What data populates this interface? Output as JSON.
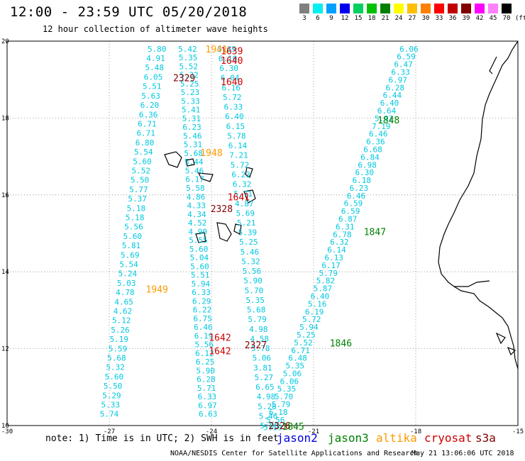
{
  "header": {
    "title": "12:00 - 23:59 UTC 05/20/2018",
    "subtitle": "12 hour collection of altimeter wave heights"
  },
  "color_scale": {
    "unit": "(ft)",
    "bins": [
      {
        "label": "3",
        "color": "#808080"
      },
      {
        "label": "6",
        "color": "#00f0f0"
      },
      {
        "label": "9",
        "color": "#00a0ff"
      },
      {
        "label": "12",
        "color": "#0000f0"
      },
      {
        "label": "15",
        "color": "#00d060"
      },
      {
        "label": "18",
        "color": "#00c000"
      },
      {
        "label": "21",
        "color": "#008000"
      },
      {
        "label": "24",
        "color": "#ffff00"
      },
      {
        "label": "27",
        "color": "#ffc000"
      },
      {
        "label": "30",
        "color": "#ff8000"
      },
      {
        "label": "33",
        "color": "#ff0000"
      },
      {
        "label": "36",
        "color": "#c00000"
      },
      {
        "label": "39",
        "color": "#800000"
      },
      {
        "label": "42",
        "color": "#ff00ff"
      },
      {
        "label": "45",
        "color": "#ff80ff"
      },
      {
        "label": "70",
        "color": "#000000"
      }
    ]
  },
  "axes": {
    "lon_ticks": [
      "-30",
      "-27",
      "-24",
      "-21",
      "-18",
      "-15"
    ],
    "lat_ticks": [
      "20",
      "18",
      "16",
      "14",
      "12",
      "10"
    ]
  },
  "passes": [
    {
      "time": "1639",
      "color": "#d00000",
      "lon": -23.4,
      "lat": 19.75
    },
    {
      "time": "1640",
      "color": "#d00000",
      "lon": -23.4,
      "lat": 19.5
    },
    {
      "time": "1640",
      "color": "#d00000",
      "lon": -23.4,
      "lat": 18.95
    },
    {
      "time": "1941",
      "color": "#ff9900",
      "lon": -23.85,
      "lat": 19.8
    },
    {
      "time": "2329",
      "color": "#800000",
      "lon": -24.8,
      "lat": 19.05
    },
    {
      "time": "1848",
      "color": "#008000",
      "lon": -18.8,
      "lat": 17.95
    },
    {
      "time": "1948",
      "color": "#ff9900",
      "lon": -24.0,
      "lat": 17.1
    },
    {
      "time": "1641",
      "color": "#d00000",
      "lon": -23.2,
      "lat": 15.95
    },
    {
      "time": "2328",
      "color": "#800000",
      "lon": -23.7,
      "lat": 15.65
    },
    {
      "time": "1847",
      "color": "#008000",
      "lon": -19.2,
      "lat": 15.05
    },
    {
      "time": "1949",
      "color": "#ff9900",
      "lon": -25.6,
      "lat": 13.55
    },
    {
      "time": "1642",
      "color": "#d00000",
      "lon": -23.75,
      "lat": 12.3
    },
    {
      "time": "2327",
      "color": "#800000",
      "lon": -22.7,
      "lat": 12.1
    },
    {
      "time": "1642",
      "color": "#d00000",
      "lon": -23.75,
      "lat": 11.95
    },
    {
      "time": "1846",
      "color": "#008000",
      "lon": -20.2,
      "lat": 12.15
    },
    {
      "time": "2326",
      "color": "#800000",
      "lon": -22.0,
      "lat": 10.0
    },
    {
      "time": "1845",
      "color": "#008000",
      "lon": -21.6,
      "lat": 9.98
    }
  ],
  "tracks": [
    {
      "name": "west-a",
      "lon0": -25.6,
      "lat0": 19.8,
      "lon1": -27.0,
      "lat1": 10.3,
      "values": [
        "5.80",
        "4.91",
        "5.48",
        "6.05",
        "5.51",
        "5.63",
        "6.20",
        "6.36",
        "6.71",
        "6.71",
        "6.80",
        "5.54",
        "5.60",
        "5.52",
        "5.50",
        "5.77",
        "5.37",
        "5.18",
        "5.18",
        "5.56",
        "5.60",
        "5.81",
        "5.69",
        "5.54",
        "5.24",
        "5.03",
        "4.78",
        "4.65",
        "4.62",
        "5.12",
        "5.26",
        "5.19",
        "5.59",
        "5.68",
        "5.32",
        "5.60",
        "5.50",
        "5.29",
        "5.33",
        "5.74"
      ]
    },
    {
      "name": "west-b",
      "lon0": -24.7,
      "lat0": 19.8,
      "lon1": -24.1,
      "lat1": 10.3,
      "values": [
        "5.42",
        "5.35",
        "5.52",
        "5.32",
        "5.25",
        "5.23",
        "5.33",
        "5.41",
        "5.31",
        "6.23",
        "5.46",
        "5.31",
        "5.68",
        "5.44",
        "5.46",
        "6.17",
        "5.58",
        "4.86",
        "4.33",
        "4.34",
        "4.52",
        "4.90",
        "5.55",
        "5.60",
        "5.04",
        "5.60",
        "5.51",
        "5.94",
        "6.33",
        "6.29",
        "6.22",
        "6.75",
        "6.46",
        "6.19",
        "5.56",
        "6.12",
        "6.25",
        "5.90",
        "6.28",
        "5.71",
        "6.33",
        "6.97",
        "6.63"
      ]
    },
    {
      "name": "mid",
      "lon0": -23.55,
      "lat0": 19.8,
      "lon1": -22.3,
      "lat1": 10.0,
      "values": [
        "5.39",
        "6.10",
        "6.30",
        "6.04",
        "6.16",
        "5.72",
        "6.33",
        "6.40",
        "6.15",
        "5.78",
        "6.14",
        "7.21",
        "5.72",
        "6.23",
        "6.32",
        "5.71",
        "4.87",
        "5.69",
        "5.21",
        "5.39",
        "5.25",
        "5.46",
        "5.32",
        "5.56",
        "5.90",
        "5.70",
        "5.35",
        "5.68",
        "5.79",
        "4.98",
        "4.58",
        "5.78",
        "5.06",
        "3.81",
        "5.27",
        "6.65",
        "4.98",
        "5.28",
        "5.46",
        "5.80"
      ]
    },
    {
      "name": "east",
      "lon0": -18.2,
      "lat0": 19.8,
      "lon1": -22.2,
      "lat1": 9.95,
      "values": [
        "6.06",
        "6.59",
        "6.47",
        "6.33",
        "6.97",
        "6.28",
        "6.44",
        "6.40",
        "6.64",
        "5.97",
        "7.19",
        "6.46",
        "6.36",
        "6.68",
        "6.84",
        "6.98",
        "6.30",
        "6.18",
        "6.23",
        "6.46",
        "6.59",
        "6.59",
        "6.87",
        "6.31",
        "6.78",
        "6.32",
        "6.14",
        "6.13",
        "6.17",
        "5.79",
        "5.82",
        "5.87",
        "6.40",
        "5.16",
        "6.19",
        "5.72",
        "5.94",
        "5.25",
        "5.52",
        "6.71",
        "6.48",
        "5.35",
        "5.06",
        "6.06",
        "5.35",
        "5.70",
        "5.79",
        "6.18",
        "5.56",
        "5.19"
      ]
    }
  ],
  "note": "note: 1) Time is in UTC; 2) SWH is in feet",
  "legend": [
    {
      "label": "jason2",
      "color": "#0000e0"
    },
    {
      "label": "jason3",
      "color": "#008000"
    },
    {
      "label": "altika",
      "color": "#ff9900"
    },
    {
      "label": "cryosat",
      "color": "#d00000"
    },
    {
      "label": "s3a",
      "color": "#800000"
    }
  ],
  "footer": "NOAA/NESDIS Center for Satellite Applications and Research",
  "timestamp": "May 21 13:06:06 UTC 2018"
}
